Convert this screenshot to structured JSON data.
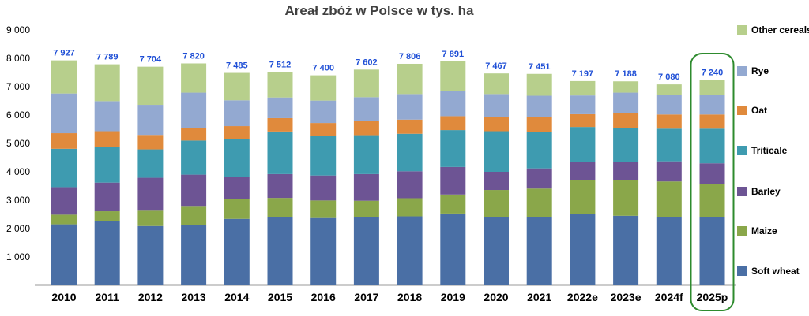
{
  "chart_data": {
    "type": "bar",
    "stacked": true,
    "title": "Areał zbóż w Polsce w tys. ha",
    "xlabel": "",
    "ylabel": "",
    "ylim": [
      0,
      9000
    ],
    "yticks": [
      "1 000",
      "2 000",
      "3 000",
      "4 000",
      "5 000",
      "6 000",
      "7 000",
      "8 000",
      "9 000"
    ],
    "grid": false,
    "legend_position": "right",
    "highlighted_category": "2025p",
    "categories": [
      "2010",
      "2011",
      "2012",
      "2013",
      "2014",
      "2015",
      "2016",
      "2017",
      "2018",
      "2019",
      "2020",
      "2021",
      "2022e",
      "2023e",
      "2024f",
      "2025p"
    ],
    "totals_labels": [
      "7 927",
      "7 789",
      "7 704",
      "7 820",
      "7 485",
      "7 512",
      "7 400",
      "7 602",
      "7 806",
      "7 891",
      "7 467",
      "7 451",
      "7 197",
      "7 188",
      "7 080",
      "7 240"
    ],
    "totals": [
      7927,
      7789,
      7704,
      7820,
      7485,
      7512,
      7400,
      7602,
      7806,
      7891,
      7467,
      7451,
      7197,
      7188,
      7080,
      7240
    ],
    "series": [
      {
        "name": "Soft wheat",
        "color": "#4a6fa5",
        "values": [
          2150,
          2270,
          2090,
          2130,
          2340,
          2390,
          2370,
          2390,
          2430,
          2530,
          2390,
          2390,
          2520,
          2450,
          2390,
          2390
        ]
      },
      {
        "name": "Maize",
        "color": "#8aa74a",
        "values": [
          340,
          340,
          540,
          640,
          690,
          690,
          620,
          590,
          640,
          670,
          970,
          1020,
          1190,
          1270,
          1270,
          1170
        ]
      },
      {
        "name": "Barley",
        "color": "#6d5494",
        "values": [
          970,
          1010,
          1160,
          1130,
          790,
          840,
          880,
          940,
          950,
          970,
          640,
          710,
          640,
          630,
          710,
          740
        ]
      },
      {
        "name": "Triticale",
        "color": "#3e9bb0",
        "values": [
          1350,
          1260,
          1000,
          1200,
          1320,
          1500,
          1390,
          1370,
          1320,
          1300,
          1430,
          1290,
          1230,
          1200,
          1150,
          1220
        ]
      },
      {
        "name": "Oat",
        "color": "#e08a3c",
        "values": [
          550,
          550,
          510,
          440,
          470,
          470,
          460,
          490,
          500,
          490,
          490,
          530,
          450,
          510,
          500,
          500
        ]
      },
      {
        "name": "Rye",
        "color": "#93a9d1",
        "values": [
          1400,
          1060,
          1060,
          1250,
          910,
          730,
          790,
          850,
          900,
          890,
          820,
          740,
          660,
          730,
          680,
          690
        ]
      },
      {
        "name": "Other cereals",
        "color": "#b7cf8c",
        "values": [
          1167,
          1299,
          1344,
          1030,
          965,
          892,
          890,
          972,
          1066,
          1041,
          727,
          771,
          507,
          398,
          380,
          530
        ]
      }
    ]
  }
}
